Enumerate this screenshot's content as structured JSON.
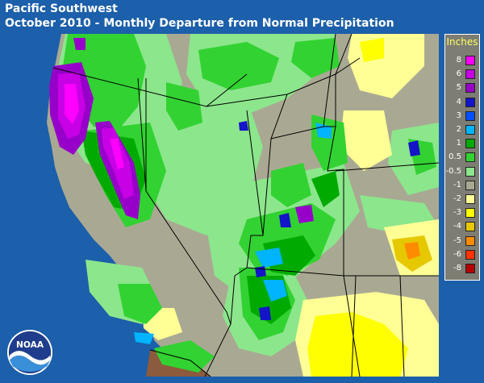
{
  "title": {
    "line1": "Pacific Southwest",
    "line2": "October 2010 - Monthly Departure from Normal Precipitation"
  },
  "legend": {
    "title": "Inches",
    "entries": [
      {
        "label": "8",
        "color": "#ff00ff"
      },
      {
        "label": "6",
        "color": "#c800e6"
      },
      {
        "label": "5",
        "color": "#9600c8"
      },
      {
        "label": "4",
        "color": "#1414c8"
      },
      {
        "label": "3",
        "color": "#0050ff"
      },
      {
        "label": "2",
        "color": "#00b4ff"
      },
      {
        "label": "1",
        "color": "#00aa00"
      },
      {
        "label": "0.5",
        "color": "#32d232"
      },
      {
        "label": "-0.5",
        "color": "#8ce68c"
      },
      {
        "label": "-1",
        "color": "#a9a993"
      },
      {
        "label": "-2",
        "color": "#ffff96"
      },
      {
        "label": "-3",
        "color": "#ffff00"
      },
      {
        "label": "-4",
        "color": "#e6c800"
      },
      {
        "label": "-5",
        "color": "#ff8c00"
      },
      {
        "label": "-6",
        "color": "#ff3200"
      },
      {
        "label": "-8",
        "color": "#b40000"
      }
    ]
  },
  "map": {
    "region": "Pacific Southwest",
    "colors": {
      "ocean": "#1c5faa",
      "land_normal": "#a9a993",
      "mexico_land": "#8c5a3c",
      "state_lines": "#000000"
    }
  },
  "logo": {
    "name": "noaa-logo",
    "text": "NOAA"
  }
}
